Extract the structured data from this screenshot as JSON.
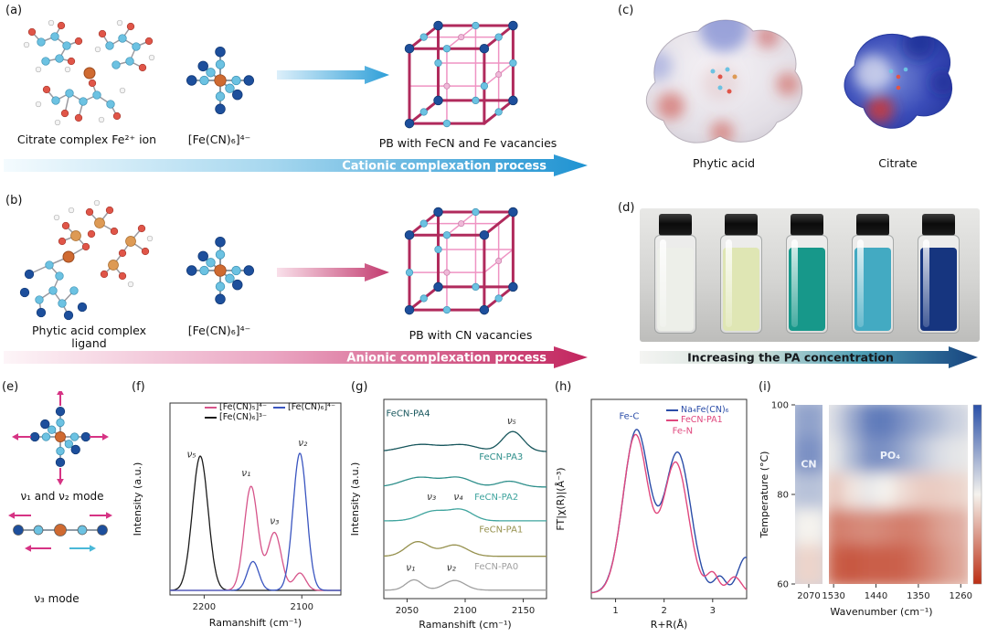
{
  "figure": {
    "panel_a": {
      "label": "(a)",
      "reactant1_caption": "Citrate complex Fe²⁺ ion",
      "reactant2_caption": "[Fe(CN)₆]⁴⁻",
      "product_caption": "PB with FeCN and Fe vacancies",
      "process_text": "Cationic complexation process"
    },
    "panel_b": {
      "label": "(b)",
      "reactant1_caption": "Phytic acid complex ligand",
      "reactant2_caption": "[Fe(CN)₆]⁴⁻",
      "product_caption": "PB with CN vacancies",
      "process_text": "Anionic complexation process"
    },
    "panel_c": {
      "label": "(c)",
      "left_caption": "Phytic acid",
      "right_caption": "Citrate"
    },
    "panel_d": {
      "label": "(d)",
      "arrow_text": "Increasing the PA concentration",
      "vial_colors": [
        "#edefe9",
        "#dfe6b4",
        "#17988a",
        "#43aac2",
        "#16357f"
      ]
    },
    "panel_e": {
      "label": "(e)",
      "mode_top_text": "ν₁ and ν₂ mode",
      "mode_bottom_text": "ν₃ mode"
    },
    "panel_f": {
      "label": "(f)"
    },
    "panel_g": {
      "label": "(g)"
    },
    "panel_h": {
      "label": "(h)"
    },
    "panel_i": {
      "label": "(i)"
    }
  },
  "chart_data": [
    {
      "id": "panel_f_raman_reference_spectra",
      "type": "line",
      "xlabel": "Ramanshift (cm⁻¹)",
      "ylabel": "Intensity (a.u.)",
      "x_range": [
        2235,
        2060
      ],
      "x_axis_reversed": true,
      "x_ticks": [
        2200,
        2100
      ],
      "legend": [
        {
          "label": "[Fe(CN)₅]⁴⁻",
          "color": "#d6548a"
        },
        {
          "label": "[Fe(CN)₆]⁴⁻",
          "color": "#3a55c0"
        },
        {
          "label": "[Fe(CN)₆]³⁻",
          "color": "#1a1a1a"
        }
      ],
      "series": [
        {
          "name": "[Fe(CN)₆]³⁻",
          "color": "#1a1a1a",
          "peaks": [
            {
              "center": 2204,
              "height": 0.93,
              "width": 8
            }
          ]
        },
        {
          "name": "[Fe(CN)₅]⁴⁻",
          "color": "#d6548a",
          "peaks": [
            {
              "center": 2152,
              "height": 0.72,
              "width": 7
            },
            {
              "center": 2128,
              "height": 0.4,
              "width": 7
            },
            {
              "center": 2102,
              "height": 0.12,
              "width": 6
            }
          ]
        },
        {
          "name": "[Fe(CN)₆]⁴⁻",
          "color": "#3a55c0",
          "peaks": [
            {
              "center": 2150,
              "height": 0.2,
              "width": 6
            },
            {
              "center": 2102,
              "height": 0.95,
              "width": 7
            }
          ]
        }
      ],
      "peak_labels": [
        {
          "text": "ν₅",
          "x": 2213,
          "y": 0.92
        },
        {
          "text": "ν₁",
          "x": 2157,
          "y": 0.79
        },
        {
          "text": "ν₂",
          "x": 2099,
          "y": 1.0
        },
        {
          "text": "ν₃",
          "x": 2128,
          "y": 0.46
        }
      ]
    },
    {
      "id": "panel_g_raman_fecn_pa_series",
      "type": "line",
      "xlabel": "Ramanshift (cm⁻¹)",
      "ylabel": "Intensity (a.u.)",
      "x_range": [
        2030,
        2170
      ],
      "x_ticks": [
        2050,
        2100,
        2150
      ],
      "stack_max": 5.9,
      "series": [
        {
          "name": "FeCN-PA4",
          "color": "#17565c",
          "offset": 4.45,
          "label_x": 2032,
          "label_y": 5.55,
          "label_anchor": "start",
          "peaks": [
            {
              "center": 2062,
              "height": 0.22,
              "width": 16
            },
            {
              "center": 2098,
              "height": 0.2,
              "width": 13
            },
            {
              "center": 2141,
              "height": 0.62,
              "width": 9
            }
          ]
        },
        {
          "name": "FeCN-PA3",
          "color": "#2e8f8b",
          "offset": 3.35,
          "label_x": 2112,
          "label_y": 4.2,
          "label_anchor": "start",
          "peaks": [
            {
              "center": 2061,
              "height": 0.3,
              "width": 15
            },
            {
              "center": 2094,
              "height": 0.28,
              "width": 12
            },
            {
              "center": 2138,
              "height": 0.18,
              "width": 10
            }
          ]
        },
        {
          "name": "FeCN-PA2",
          "color": "#3fa49e",
          "offset": 2.3,
          "label_x": 2108,
          "label_y": 2.95,
          "label_anchor": "start",
          "peaks": [
            {
              "center": 2073,
              "height": 0.3,
              "width": 12
            },
            {
              "center": 2097,
              "height": 0.32,
              "width": 10
            }
          ]
        },
        {
          "name": "FeCN-PA1",
          "color": "#96914e",
          "offset": 1.2,
          "label_x": 2112,
          "label_y": 1.95,
          "label_anchor": "start",
          "peaks": [
            {
              "center": 2059,
              "height": 0.45,
              "width": 10
            },
            {
              "center": 2091,
              "height": 0.35,
              "width": 11
            }
          ]
        },
        {
          "name": "FeCN-PA0",
          "color": "#a0a0a0",
          "offset": 0.15,
          "label_x": 2108,
          "label_y": 0.8,
          "label_anchor": "start",
          "peaks": [
            {
              "center": 2056,
              "height": 0.32,
              "width": 7
            },
            {
              "center": 2091,
              "height": 0.3,
              "width": 9
            }
          ]
        }
      ],
      "peak_labels": [
        {
          "text": "ν₁",
          "x": 2053,
          "y": 0.75
        },
        {
          "text": "ν₂",
          "x": 2088,
          "y": 0.75
        },
        {
          "text": "ν₃",
          "x": 2071,
          "y": 2.95
        },
        {
          "text": "ν₄",
          "x": 2094,
          "y": 2.95
        },
        {
          "text": "ν₅",
          "x": 2140,
          "y": 5.3
        }
      ]
    },
    {
      "id": "panel_h_exafs_ft",
      "type": "line",
      "xlabel": "R+R(Å)",
      "ylabel": "FT|χ(R)|(Å⁻³)",
      "x_range": [
        0.5,
        3.7
      ],
      "x_ticks": [
        1,
        2,
        3
      ],
      "legend": [
        {
          "label": "Na₄Fe(CN)₆",
          "color": "#2b4da8"
        },
        {
          "label": "FeCN-PA1",
          "color": "#e0487e"
        }
      ],
      "series": [
        {
          "name": "Na₄Fe(CN)₆",
          "color": "#2b4da8",
          "peaks": [
            {
              "center": 1.43,
              "height": 1.0,
              "width": 0.27
            },
            {
              "center": 2.28,
              "height": 0.86,
              "width": 0.27
            },
            {
              "center": 3.15,
              "height": 0.1,
              "width": 0.12
            },
            {
              "center": 3.68,
              "height": 0.22,
              "width": 0.16
            }
          ]
        },
        {
          "name": "FeCN-PA1",
          "color": "#e0487e",
          "peaks": [
            {
              "center": 1.41,
              "height": 0.97,
              "width": 0.26
            },
            {
              "center": 2.24,
              "height": 0.8,
              "width": 0.26
            },
            {
              "center": 3.0,
              "height": 0.12,
              "width": 0.12
            },
            {
              "center": 3.45,
              "height": 0.1,
              "width": 0.14
            }
          ]
        }
      ],
      "annotations": [
        {
          "text": "Fe-C",
          "x": 1.28,
          "y": 1.07,
          "color": "#2b4da8"
        },
        {
          "text": "Fe-N",
          "x": 2.38,
          "y": 0.98,
          "color": "#e0487e"
        }
      ]
    },
    {
      "id": "panel_i_insitu_ir_heatmap",
      "type": "heatmap",
      "xlabel": "Wavenumber (cm⁻¹)",
      "ylabel": "Temperature (°C)",
      "y_range": [
        60,
        100
      ],
      "y_ticks": [
        100,
        80,
        60
      ],
      "segments": [
        {
          "name": "CN region",
          "x_range": [
            2085,
            2055
          ],
          "x_ticks": [
            2070
          ]
        },
        {
          "name": "PO4 region",
          "x_range": [
            1540,
            1245
          ],
          "x_ticks": [
            1530,
            1440,
            1350,
            1260
          ]
        }
      ],
      "region_labels": [
        {
          "text": "CN",
          "segment": 0,
          "x": 2070,
          "temperature": 86
        },
        {
          "text": "PO₄",
          "segment": 1,
          "x": 1410,
          "temperature": 88
        }
      ],
      "temperatures": [
        100,
        90,
        80,
        70,
        60
      ],
      "grid_segment0": [
        [
          0.25
        ],
        [
          0.2
        ],
        [
          0.35
        ],
        [
          0.5
        ],
        [
          0.58
        ]
      ],
      "grid_segment1": [
        [
          0.42,
          0.28,
          0.14,
          0.13,
          0.2,
          0.27,
          0.33,
          0.4
        ],
        [
          0.46,
          0.33,
          0.2,
          0.2,
          0.27,
          0.36,
          0.43,
          0.46
        ],
        [
          0.62,
          0.54,
          0.47,
          0.5,
          0.56,
          0.6,
          0.6,
          0.58
        ],
        [
          0.8,
          0.78,
          0.76,
          0.78,
          0.8,
          0.78,
          0.72,
          0.68
        ],
        [
          0.88,
          0.9,
          0.88,
          0.88,
          0.87,
          0.82,
          0.76,
          0.7
        ]
      ],
      "grid_wavenumbers_segment1": [
        1540,
        1500,
        1460,
        1420,
        1380,
        1340,
        1300,
        1260
      ],
      "value_meaning": "0 = low absorbance (blue), 1 = high absorbance (red)",
      "colorbar": {
        "low": "#2a50a8",
        "mid": "#f5f3ee",
        "high": "#bc2f14"
      }
    }
  ]
}
